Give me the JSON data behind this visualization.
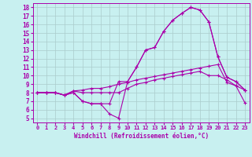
{
  "xlabel": "Windchill (Refroidissement éolien,°C)",
  "background_color": "#c8f0f0",
  "grid_color": "#aacccc",
  "line_color": "#aa00aa",
  "xlim": [
    -0.5,
    23.5
  ],
  "ylim": [
    4.5,
    18.5
  ],
  "xticks": [
    0,
    1,
    2,
    3,
    4,
    5,
    6,
    7,
    8,
    9,
    10,
    11,
    12,
    13,
    14,
    15,
    16,
    17,
    18,
    19,
    20,
    21,
    22,
    23
  ],
  "yticks": [
    5,
    6,
    7,
    8,
    9,
    10,
    11,
    12,
    13,
    14,
    15,
    16,
    17,
    18
  ],
  "series1_x": [
    0,
    1,
    2,
    3,
    4,
    5,
    6,
    7,
    8,
    9,
    10,
    11,
    12,
    13,
    14,
    15,
    16,
    17,
    18,
    19,
    20,
    21,
    22,
    23
  ],
  "series1_y": [
    8.0,
    8.0,
    8.0,
    7.7,
    8.0,
    7.0,
    6.7,
    6.7,
    6.7,
    9.3,
    9.3,
    11.0,
    13.0,
    13.3,
    15.2,
    16.5,
    17.3,
    18.0,
    17.7,
    16.3,
    12.2,
    9.8,
    9.3,
    8.3
  ],
  "series2_x": [
    0,
    1,
    2,
    3,
    4,
    5,
    6,
    7,
    8,
    9,
    10,
    11,
    12,
    13,
    14,
    15,
    16,
    17,
    18,
    19,
    20,
    21,
    22,
    23
  ],
  "series2_y": [
    8.0,
    8.0,
    8.0,
    7.7,
    8.2,
    8.3,
    8.5,
    8.5,
    8.7,
    9.0,
    9.2,
    9.5,
    9.7,
    9.9,
    10.1,
    10.3,
    10.5,
    10.7,
    10.9,
    11.1,
    11.3,
    9.2,
    8.8,
    8.3
  ],
  "series3_x": [
    0,
    1,
    2,
    3,
    4,
    5,
    6,
    7,
    8,
    9,
    10,
    11,
    12,
    13,
    14,
    15,
    16,
    17,
    18,
    19,
    20,
    21,
    22,
    23
  ],
  "series3_y": [
    8.0,
    8.0,
    8.0,
    7.7,
    8.0,
    7.0,
    6.7,
    6.7,
    5.5,
    5.0,
    9.3,
    11.0,
    13.0,
    13.3,
    15.2,
    16.5,
    17.3,
    18.0,
    17.7,
    16.3,
    12.2,
    9.8,
    9.3,
    8.3
  ],
  "series4_x": [
    0,
    1,
    2,
    3,
    4,
    5,
    6,
    7,
    8,
    9,
    10,
    11,
    12,
    13,
    14,
    15,
    16,
    17,
    18,
    19,
    20,
    21,
    22,
    23
  ],
  "series4_y": [
    8.0,
    8.0,
    8.0,
    7.7,
    8.2,
    8.0,
    8.0,
    8.0,
    8.0,
    8.0,
    8.5,
    9.0,
    9.2,
    9.5,
    9.7,
    9.9,
    10.1,
    10.3,
    10.5,
    10.0,
    10.0,
    9.5,
    8.8,
    6.8
  ]
}
